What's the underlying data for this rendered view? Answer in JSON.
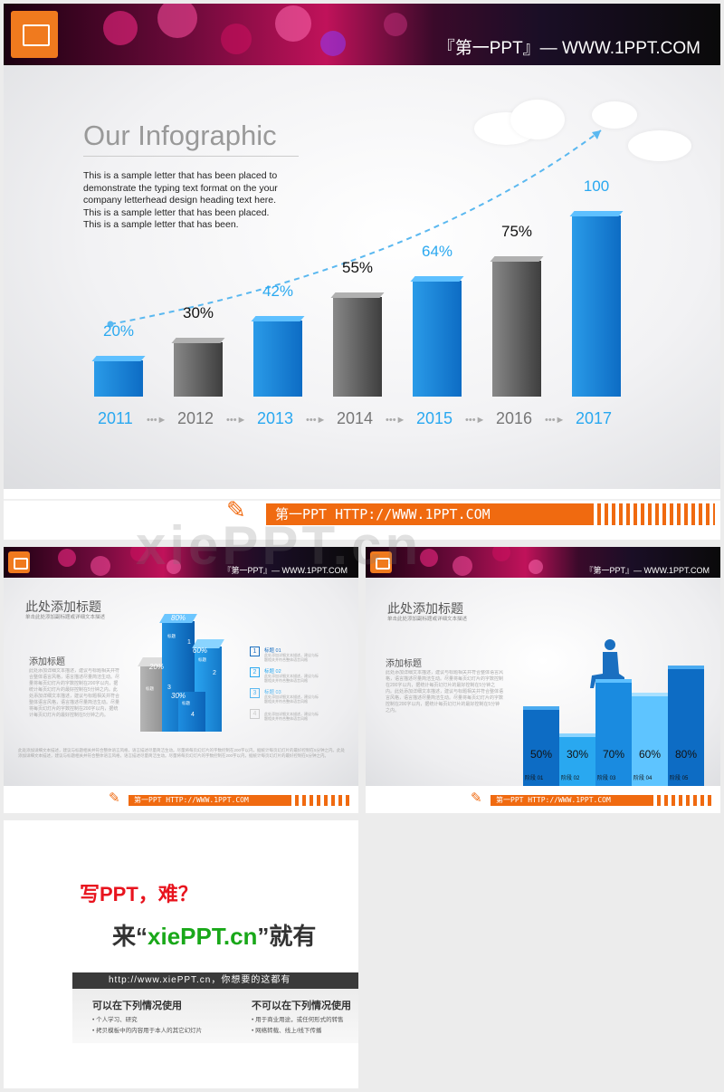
{
  "slide1": {
    "site_title": "『第一PPT』— WWW.1PPT.COM",
    "title": "Our Infographic",
    "body": "This is a sample letter that has been placed to demonstrate the typing text format on the your company letterhead design heading text here. This is a sample letter that has been placed. This is a sample letter that has been.",
    "footer": "第一PPT HTTP://WWW.1PPT.COM",
    "chart_data": {
      "type": "bar",
      "categories": [
        "2011",
        "2012",
        "2013",
        "2014",
        "2015",
        "2016",
        "2017"
      ],
      "values": [
        20,
        30,
        42,
        55,
        64,
        75,
        100
      ],
      "labels": [
        "20%",
        "30%",
        "42%",
        "55%",
        "64%",
        "75%",
        "100"
      ],
      "ylim": [
        0,
        100
      ]
    }
  },
  "slide2": {
    "site_title": "『第一PPT』— WWW.1PPT.COM",
    "title": "此处添加标题",
    "subtitle": "单击此处添加副标题或详细文本描述",
    "section_title": "添加标题",
    "section_body": "此处添加详细文本描述，建议与标题相关并符合整体语言风格，语言描述尽量简洁生动。尽量将每页幻灯片的字数控制在200字以内，据统计每页幻灯片的最好控制在5分钟之内。此处添加详细文本描述，建议与标题相关并符合整体语言风格，语言描述尽量简洁生动。尽量将每页幻灯片的字数控制在200字以内，据统计每页幻灯片的最好控制在5分钟之内。",
    "bottom_text": "此处添加详细文本描述，建议与标题相关并符合整体语言风格，语言描述尽量简洁生动。尽量将每页幻灯片的字数控制在200字以内，据统计每页幻灯片的最好控制在5分钟之内。此处添加详细文本描述，建议与标题相关并符合整体语言风格，语言描述尽量简洁生动。尽量将每页幻灯片的字数控制在200字以内，据统计每页幻灯片的最好控制在5分钟之内。",
    "cube_labels": [
      "80%",
      "60%",
      "20%",
      "30%"
    ],
    "cube_numbers": [
      "1",
      "2",
      "3",
      "4"
    ],
    "cube_tags": [
      "标题",
      "标题",
      "标题",
      "标题"
    ],
    "items": [
      {
        "num": "1",
        "title": "标题 01",
        "desc": "此处添加详细文本描述，建议与标题相关并符合整体语言风格"
      },
      {
        "num": "2",
        "title": "标题 02",
        "desc": "此处添加详细文本描述，建议与标题相关并符合整体语言风格"
      },
      {
        "num": "3",
        "title": "标题 03",
        "desc": "此处添加详细文本描述，建议与标题相关并符合整体语言风格"
      },
      {
        "num": "4",
        "title": "",
        "desc": "此处添加详细文本描述，建议与标题相关并符合整体语言风格"
      }
    ],
    "footer": "第一PPT HTTP://WWW.1PPT.COM"
  },
  "slide3": {
    "site_title": "『第一PPT』— WWW.1PPT.COM",
    "title": "此处添加标题",
    "subtitle": "单击此处添加副标题或详细文本描述",
    "section_title": "添加标题",
    "section_body": "此处添加详细文本描述，建议与标题相关并符合整体语言风格，语言描述尽量简洁生动。尽量将每页幻灯片的字数控制在200字以内，据统计每页幻灯片的最好控制在5分钟之内。此处添加详细文本描述，建议与标题相关并符合整体语言风格，语言描述尽量简洁生动。尽量将每页幻灯片的字数控制在200字以内，据统计每页幻灯片的最好控制在5分钟之内。",
    "footer": "第一PPT HTTP://WWW.1PPT.COM",
    "chart_data": {
      "type": "bar",
      "categories": [
        "阶段 01",
        "阶段 02",
        "阶段 03",
        "阶段 04",
        "阶段 05"
      ],
      "values": [
        50,
        30,
        70,
        60,
        80
      ],
      "labels": [
        "50%",
        "30%",
        "70%",
        "60%",
        "80%"
      ],
      "ylim": [
        0,
        100
      ]
    }
  },
  "ad": {
    "line1": "写PPT，难？",
    "line2_pre": "来“",
    "line2_brand": "xiePPT.cn",
    "line2_post": "”就有",
    "url_bar": "http://www.xiePPT.cn，你想要的这都有",
    "can_title": "可以在下列情况使用",
    "can_items": [
      "个人学习、研究",
      "拷贝模板中的内容用于本人的其它幻灯片"
    ],
    "cannot_title": "不可以在下列情况使用",
    "cannot_items": [
      "用于商业用途，或任何形式的转售",
      "网络转载、线上/线下传播"
    ]
  },
  "watermark": "xiePPT.cn",
  "colors": {
    "blue": "#1a8be0",
    "light_blue": "#29a8f0",
    "gray": "#555555",
    "orange": "#f06a10",
    "red": "#e8141e",
    "green": "#19a819"
  }
}
